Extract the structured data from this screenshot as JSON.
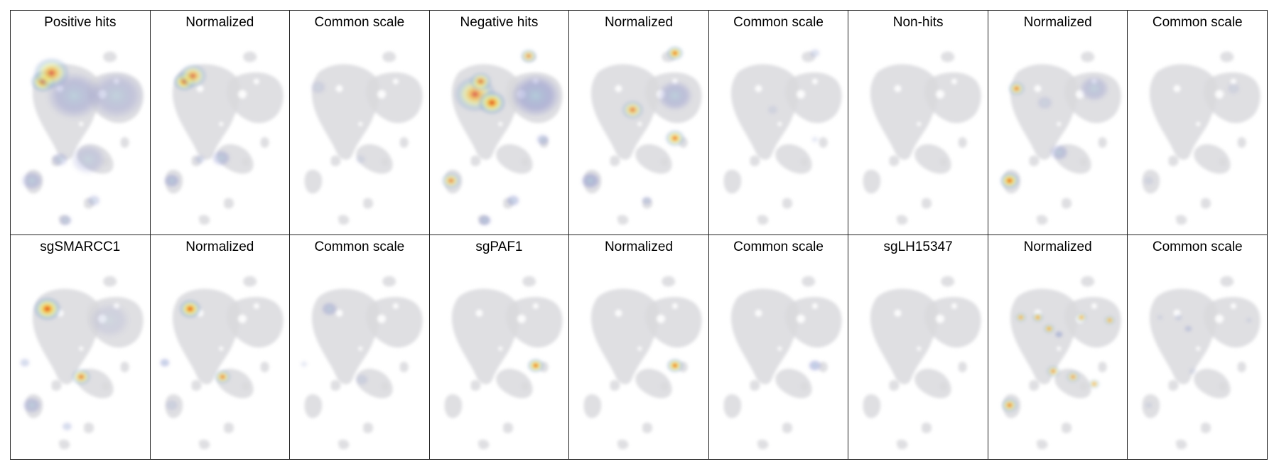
{
  "figure": {
    "rows": [
      {
        "panels": [
          {
            "title": "Positive hits",
            "scale": "raw"
          },
          {
            "title": "Normalized",
            "scale": "normalized"
          },
          {
            "title": "Common scale",
            "scale": "common"
          },
          {
            "title": "Negative hits",
            "scale": "raw"
          },
          {
            "title": "Normalized",
            "scale": "normalized"
          },
          {
            "title": "Common scale",
            "scale": "common"
          },
          {
            "title": "Non-hits",
            "scale": "raw"
          },
          {
            "title": "Normalized",
            "scale": "normalized"
          },
          {
            "title": "Common scale",
            "scale": "common"
          }
        ]
      },
      {
        "panels": [
          {
            "title": "sgSMARCC1",
            "scale": "raw"
          },
          {
            "title": "Normalized",
            "scale": "normalized"
          },
          {
            "title": "Common scale",
            "scale": "common"
          },
          {
            "title": "sgPAF1",
            "scale": "raw"
          },
          {
            "title": "Normalized",
            "scale": "normalized"
          },
          {
            "title": "Common scale",
            "scale": "common"
          },
          {
            "title": "sgLH15347",
            "scale": "raw"
          },
          {
            "title": "Normalized",
            "scale": "normalized"
          },
          {
            "title": "Common scale",
            "scale": "common"
          }
        ]
      }
    ],
    "colormap": [
      "#6a6fc0",
      "#9ec3d6",
      "#e9ef9a",
      "#f7b733",
      "#d7191c"
    ],
    "background_color": "#d9d9dd"
  }
}
